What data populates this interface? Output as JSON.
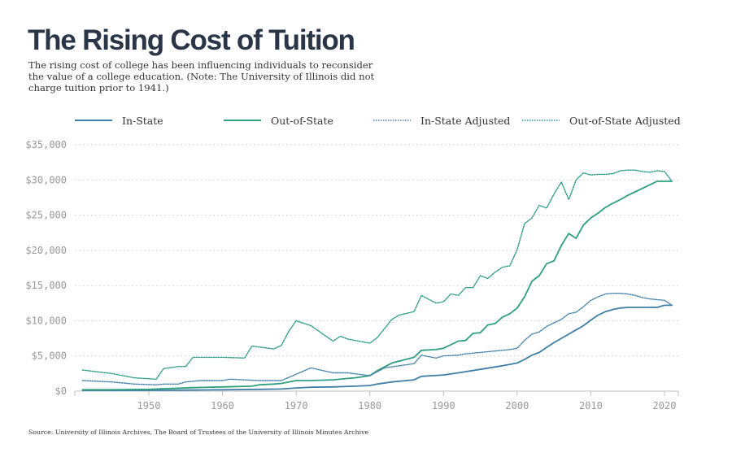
{
  "header": {
    "title": "The Rising Cost of Tuition",
    "subtitle": "The rising cost of college has been influencing individuals to reconsider the value of a college education. (Note: The University of Illinois did not charge tuition prior to 1941.)"
  },
  "source": "Source: University of Illinois Archives, The Board of Trustees of the University of Illinois Minutes Archive",
  "colors": {
    "in_state": "#3f7fa8",
    "out_of_state": "#2fa07f",
    "in_state_adjusted": "#3f7fa8",
    "out_of_state_adjusted": "#2a9a85",
    "gridline": "#d6d6d6",
    "axis": "#bdbdbd",
    "tick_label": "#999999"
  },
  "chart_data": {
    "type": "line",
    "title": "The Rising Cost of Tuition",
    "xlabel": "",
    "ylabel": "",
    "xlim": [
      1941,
      2021
    ],
    "ylim": [
      0,
      35000
    ],
    "yticks": [
      0,
      5000,
      10000,
      15000,
      20000,
      25000,
      30000,
      35000
    ],
    "ytick_labels": [
      "$0",
      "$5,000",
      "$10,000",
      "$15,000",
      "$20,000",
      "$25,000",
      "$30,000",
      "$35,000"
    ],
    "xticks": [
      1950,
      1960,
      1970,
      1980,
      1990,
      2000,
      2010,
      2020
    ],
    "xtick_labels": [
      "1950",
      "1960",
      "1970",
      "1980",
      "1990",
      "2000",
      "2010",
      "2020"
    ],
    "grid": "horizontal-dotted",
    "legend_position": "top",
    "series": [
      {
        "name": "In-State",
        "style": "solid",
        "x": [
          1941,
          1945,
          1950,
          1955,
          1960,
          1965,
          1968,
          1970,
          1972,
          1975,
          1978,
          1980,
          1981,
          1983,
          1986,
          1987,
          1990,
          1992,
          1995,
          1998,
          1999,
          2000,
          2001,
          2002,
          2003,
          2004,
          2005,
          2006,
          2007,
          2008,
          2009,
          2010,
          2011,
          2012,
          2013,
          2014,
          2015,
          2016,
          2017,
          2018,
          2019,
          2020,
          2021
        ],
        "values": [
          100,
          100,
          120,
          150,
          200,
          250,
          300,
          450,
          550,
          600,
          700,
          800,
          1000,
          1300,
          1600,
          2100,
          2300,
          2600,
          3100,
          3600,
          3800,
          4000,
          4500,
          5100,
          5500,
          6200,
          6900,
          7500,
          8100,
          8700,
          9300,
          10100,
          10800,
          11300,
          11600,
          11800,
          11900,
          11900,
          11900,
          11900,
          11900,
          12200,
          12200
        ]
      },
      {
        "name": "Out-of-State",
        "style": "solid",
        "x": [
          1941,
          1945,
          1950,
          1952,
          1956,
          1960,
          1964,
          1965,
          1967,
          1968,
          1970,
          1972,
          1975,
          1977,
          1978,
          1980,
          1981,
          1983,
          1986,
          1987,
          1989,
          1990,
          1991,
          1992,
          1993,
          1994,
          1995,
          1996,
          1997,
          1998,
          1999,
          2000,
          2001,
          2002,
          2003,
          2004,
          2005,
          2006,
          2007,
          2008,
          2009,
          2010,
          2011,
          2012,
          2013,
          2014,
          2015,
          2016,
          2017,
          2018,
          2019,
          2020,
          2021
        ],
        "values": [
          200,
          200,
          250,
          350,
          500,
          600,
          700,
          900,
          1000,
          1100,
          1500,
          1500,
          1600,
          1800,
          1900,
          2200,
          2900,
          4000,
          4800,
          5800,
          5900,
          6100,
          6600,
          7100,
          7200,
          8200,
          8300,
          9400,
          9600,
          10500,
          11000,
          11800,
          13400,
          15600,
          16400,
          18100,
          18500,
          20700,
          22400,
          21700,
          23600,
          24600,
          25300,
          26100,
          26700,
          27200,
          27800,
          28300,
          28800,
          29300,
          29800,
          29800,
          29800
        ]
      },
      {
        "name": "In-State Adjusted",
        "style": "dotted",
        "x": [
          1941,
          1945,
          1948,
          1951,
          1952,
          1954,
          1955,
          1957,
          1960,
          1961,
          1965,
          1967,
          1968,
          1970,
          1972,
          1975,
          1977,
          1980,
          1982,
          1984,
          1986,
          1987,
          1989,
          1990,
          1992,
          1993,
          1995,
          1998,
          1999,
          2000,
          2001,
          2002,
          2003,
          2004,
          2005,
          2006,
          2007,
          2008,
          2009,
          2010,
          2011,
          2012,
          2013,
          2014,
          2015,
          2016,
          2017,
          2018,
          2019,
          2020,
          2021
        ],
        "values": [
          1500,
          1300,
          1000,
          900,
          1000,
          1000,
          1300,
          1500,
          1500,
          1700,
          1500,
          1500,
          1500,
          2400,
          3300,
          2600,
          2600,
          2200,
          3300,
          3600,
          3900,
          5100,
          4700,
          5000,
          5100,
          5300,
          5500,
          5800,
          5900,
          6100,
          7200,
          8100,
          8400,
          9200,
          9700,
          10200,
          11000,
          11200,
          12000,
          12900,
          13400,
          13800,
          13900,
          13900,
          13800,
          13600,
          13300,
          13100,
          13000,
          12900,
          12200
        ]
      },
      {
        "name": "Out-of-State Adjusted",
        "style": "dotted",
        "x": [
          1941,
          1945,
          1948,
          1951,
          1952,
          1954,
          1955,
          1956,
          1960,
          1963,
          1964,
          1967,
          1968,
          1969,
          1970,
          1972,
          1975,
          1976,
          1977,
          1980,
          1981,
          1983,
          1984,
          1986,
          1987,
          1989,
          1990,
          1991,
          1992,
          1993,
          1994,
          1995,
          1996,
          1997,
          1998,
          1999,
          2000,
          2001,
          2002,
          2003,
          2004,
          2005,
          2006,
          2007,
          2008,
          2009,
          2010,
          2011,
          2012,
          2013,
          2014,
          2015,
          2016,
          2017,
          2018,
          2019,
          2020,
          2021
        ],
        "values": [
          3000,
          2500,
          1900,
          1700,
          3200,
          3500,
          3500,
          4800,
          4800,
          4700,
          6400,
          6000,
          6500,
          8500,
          10000,
          9300,
          7100,
          7800,
          7400,
          6800,
          7600,
          10200,
          10800,
          11300,
          13600,
          12500,
          12700,
          13800,
          13600,
          14700,
          14700,
          16400,
          16000,
          16900,
          17600,
          17800,
          20100,
          23800,
          24600,
          26400,
          26000,
          28000,
          29700,
          27200,
          30000,
          31000,
          30700,
          30800,
          30800,
          30900,
          31300,
          31400,
          31400,
          31200,
          31100,
          31300,
          31200,
          29800
        ]
      }
    ]
  },
  "legend": [
    {
      "label": "In-State",
      "key": "in_state",
      "style": "solid"
    },
    {
      "label": "Out-of-State",
      "key": "out_of_state",
      "style": "solid"
    },
    {
      "label": "In-State Adjusted",
      "key": "in_state_adjusted",
      "style": "dotted"
    },
    {
      "label": "Out-of-State Adjusted",
      "key": "out_of_state_adjusted",
      "style": "dotted"
    }
  ]
}
